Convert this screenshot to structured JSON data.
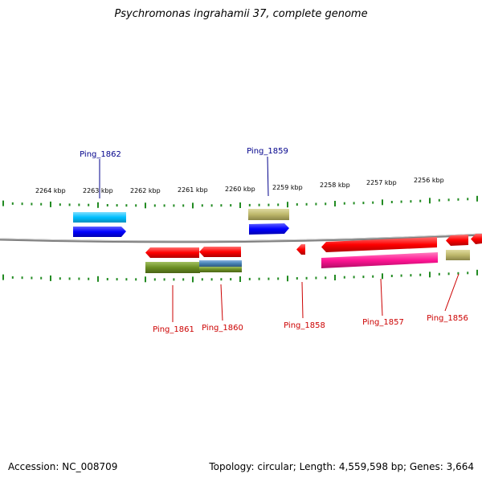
{
  "title": "Psychromonas ingrahamii 37, complete genome",
  "accession_label": "Accession: NC_008709",
  "summary_label": "Topology: circular; Length: 4,559,598 bp; Genes: 3,664",
  "colors": {
    "backbone": "#808080",
    "ticks": "#228B22",
    "label_top": "#00008B",
    "label_bottom": "#CC0000",
    "cyan": "#00BFFF",
    "blue": "#0000FF",
    "khaki": "#BDB76B",
    "red": "#FF0000",
    "olive": "#6B8E23",
    "steel": "#4682B4",
    "magenta": "#FF1493"
  },
  "kbp_labels": [
    "2264 kbp",
    "2263 kbp",
    "2262 kbp",
    "2261 kbp",
    "2260 kbp",
    "2259 kbp",
    "2258 kbp",
    "2257 kbp",
    "2256 kbp"
  ],
  "gene_labels": {
    "ping_1862": "Ping_1862",
    "ping_1859": "Ping_1859",
    "ping_1861": "Ping_1861",
    "ping_1860": "Ping_1860",
    "ping_1858": "Ping_1858",
    "ping_1857": "Ping_1857",
    "ping_1856": "Ping_1856"
  }
}
